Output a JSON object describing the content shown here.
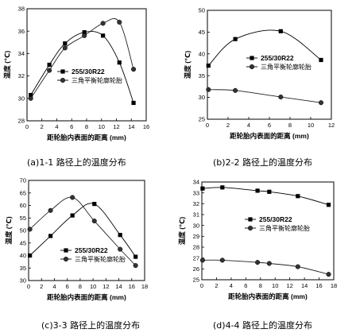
{
  "chart_data": [
    {
      "type": "line",
      "xlabel": "距轮胎内表面的距离 (mm)",
      "ylabel": "温度 (℃)",
      "xlim": [
        0,
        16
      ],
      "ylim": [
        28,
        38
      ],
      "xticks": [
        0,
        2,
        4,
        6,
        8,
        10,
        12,
        14,
        16
      ],
      "yticks": [
        28,
        30,
        32,
        34,
        36,
        38
      ],
      "legend_position": "bottom-right",
      "series": [
        {
          "name": "255/30R22",
          "marker": "square",
          "x": [
            0.5,
            3.0,
            5.1,
            7.7,
            10.2,
            12.4,
            14.3
          ],
          "y": [
            30.3,
            33.0,
            34.9,
            35.9,
            35.6,
            33.2,
            29.6
          ]
        },
        {
          "name": "三角平衡轮廓轮胎",
          "marker": "circle",
          "x": [
            0.5,
            3.0,
            5.1,
            7.7,
            10.2,
            12.4,
            14.3
          ],
          "y": [
            30.0,
            32.5,
            34.5,
            35.6,
            36.7,
            36.8,
            32.6
          ]
        }
      ],
      "caption": "(a)1-1 路径上的温度分布"
    },
    {
      "type": "line",
      "xlabel": "距轮胎内表面的距离 (mm)",
      "ylabel": "温度 (℃)",
      "xlim": [
        0,
        12
      ],
      "ylim": [
        25,
        50
      ],
      "xticks": [
        0,
        2,
        4,
        6,
        8,
        10,
        12
      ],
      "yticks": [
        25,
        30,
        35,
        40,
        45,
        50
      ],
      "legend_position": "center-right",
      "series": [
        {
          "name": "255/30R22",
          "marker": "square",
          "x": [
            0.1,
            2.7,
            7.1,
            11.0
          ],
          "y": [
            37.3,
            43.4,
            45.2,
            38.6
          ]
        },
        {
          "name": "三角平衡轮廓轮胎",
          "marker": "circle",
          "x": [
            0.1,
            2.7,
            7.1,
            11.0
          ],
          "y": [
            31.8,
            31.6,
            30.1,
            28.8
          ]
        }
      ],
      "caption": "(b)2-2 路径上的温度分布"
    },
    {
      "type": "line",
      "xlabel": "距轮胎内表面的距离 (mm)",
      "ylabel": "温度 (℃)",
      "xlim": [
        0,
        18
      ],
      "ylim": [
        30,
        70
      ],
      "xticks": [
        0,
        2,
        4,
        6,
        8,
        10,
        12,
        14,
        16,
        18
      ],
      "yticks": [
        30,
        35,
        40,
        45,
        50,
        55,
        60,
        65,
        70
      ],
      "legend_position": "bottom-center",
      "series": [
        {
          "name": "255/30R22",
          "marker": "square",
          "x": [
            0.2,
            3.4,
            6.8,
            10.2,
            14.2,
            16.6
          ],
          "y": [
            40.0,
            47.8,
            56.0,
            60.6,
            48.2,
            39.5
          ]
        },
        {
          "name": "三角平衡轮廓轮胎",
          "marker": "circle",
          "x": [
            0.2,
            3.4,
            6.8,
            10.2,
            14.2,
            16.6
          ],
          "y": [
            50.5,
            58.0,
            63.2,
            53.8,
            42.5,
            36.0
          ]
        }
      ],
      "caption": "(c)3-3 路径上的温度分布"
    },
    {
      "type": "line",
      "xlabel": "距轮胎内表面的距离 (mm)",
      "ylabel": "温度 (℃)",
      "xlim": [
        0,
        18
      ],
      "ylim": [
        25,
        34
      ],
      "xticks": [
        0,
        2,
        4,
        6,
        8,
        10,
        12,
        14,
        16,
        18
      ],
      "yticks": [
        25,
        26,
        27,
        28,
        29,
        30,
        31,
        32,
        33,
        34
      ],
      "legend_position": "center-right",
      "series": [
        {
          "name": "255/30R22",
          "marker": "square",
          "x": [
            0.1,
            2.8,
            7.6,
            9.2,
            13.1,
            17.3
          ],
          "y": [
            33.4,
            33.5,
            33.2,
            33.1,
            32.7,
            31.9
          ]
        },
        {
          "name": "三角平衡轮廓轮胎",
          "marker": "circle",
          "x": [
            0.1,
            2.8,
            7.6,
            9.2,
            13.1,
            17.3
          ],
          "y": [
            26.8,
            26.8,
            26.6,
            26.5,
            26.2,
            25.5
          ]
        }
      ],
      "caption": "(d)4-4 路径上的温度分布"
    }
  ]
}
